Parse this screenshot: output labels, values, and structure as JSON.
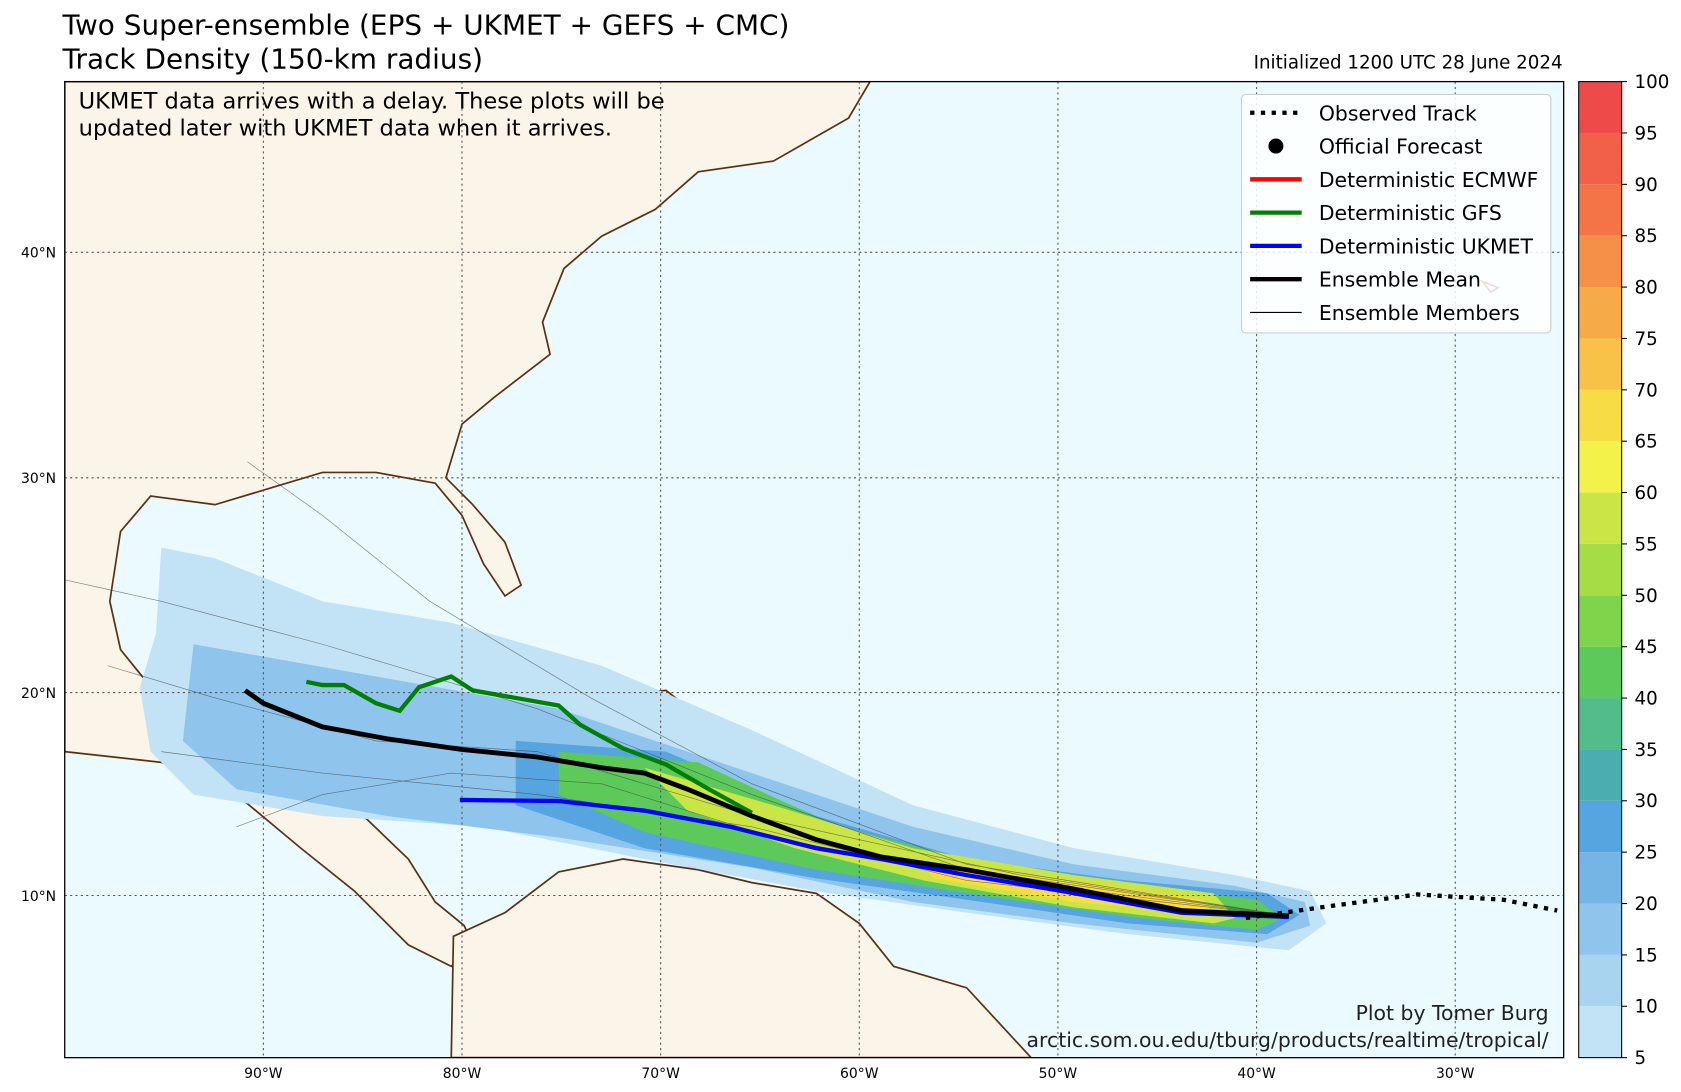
{
  "map": {
    "title": "Two Super-ensemble (EPS + UKMET + GEFS + CMC)",
    "subtitle": "Track Density (150-km radius)",
    "initialized": "Initialized 1200 UTC 28 June 2024",
    "note": [
      "UKMET data arrives with a delay. These plots will be",
      "updated later with UKMET data when it arrives."
    ],
    "lat_labels": [
      "10°N",
      "20°N",
      "30°N",
      "40°N"
    ],
    "lon_labels": [
      "90°W",
      "80°W",
      "70°W",
      "60°W",
      "50°W",
      "40°W",
      "30°W"
    ],
    "legend": [
      {
        "name": "Observed Track",
        "color": "#000000",
        "style": "dotted"
      },
      {
        "name": "Official Forecast",
        "color": "#000000",
        "style": "dot"
      },
      {
        "name": "Deterministic ECMWF",
        "color": "#ff0000",
        "style": "line"
      },
      {
        "name": "Deterministic GFS",
        "color": "#008000",
        "style": "line"
      },
      {
        "name": "Deterministic UKMET",
        "color": "#0000ff",
        "style": "line"
      },
      {
        "name": "Ensemble Mean",
        "color": "#000000",
        "style": "line"
      },
      {
        "name": "Ensemble Members",
        "color": "#000000",
        "style": "thin"
      }
    ],
    "colorbar": {
      "ticks": [
        5,
        10,
        15,
        20,
        25,
        30,
        35,
        40,
        45,
        50,
        55,
        60,
        65,
        70,
        75,
        80,
        85,
        90,
        95,
        100
      ],
      "colors": [
        "#c2e2f5",
        "#a9d4f0",
        "#8fc5ec",
        "#74b5e6",
        "#56a5e0",
        "#4aaeb0",
        "#52bd8a",
        "#5cc95a",
        "#7ed44a",
        "#a6dc44",
        "#cbe547",
        "#f2f24a",
        "#f8dc46",
        "#f7c247",
        "#f6aa48",
        "#f68f48",
        "#f47448",
        "#f2604a",
        "#ef4a4a"
      ]
    },
    "credit": [
      "Plot by Tomer Burg",
      "arctic.som.ou.edu/tburg/products/realtime/tropical/"
    ]
  }
}
